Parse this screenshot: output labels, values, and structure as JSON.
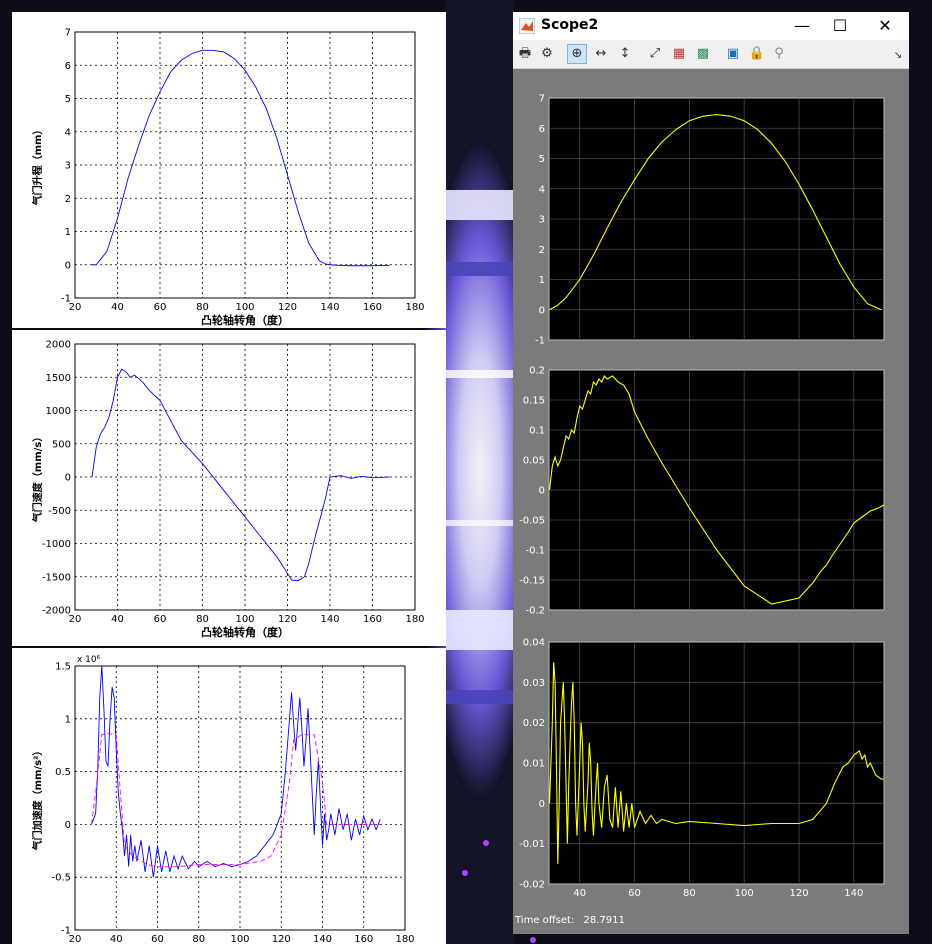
{
  "left_figures": {
    "chart_data": [
      {
        "type": "line",
        "xlabel": "凸轮轴转角（度）",
        "ylabel": "气门升程（mm）",
        "xlim": [
          20,
          180
        ],
        "ylim": [
          -1,
          7
        ],
        "x_ticks": [
          20,
          40,
          60,
          80,
          100,
          120,
          140,
          160,
          180
        ],
        "y_ticks": [
          -1,
          0,
          1,
          2,
          3,
          4,
          5,
          6,
          7
        ],
        "grid": true,
        "series": [
          {
            "color": "#0000ff",
            "x": [
              28,
              30,
              35,
              40,
              45,
              50,
              55,
              60,
              65,
              70,
              75,
              80,
              85,
              90,
              95,
              100,
              105,
              110,
              115,
              120,
              125,
              130,
              135,
              138,
              140,
              145,
              150,
              160,
              168
            ],
            "y": [
              0,
              0,
              0.4,
              1.4,
              2.6,
              3.6,
              4.5,
              5.2,
              5.8,
              6.15,
              6.35,
              6.45,
              6.45,
              6.4,
              6.2,
              5.85,
              5.35,
              4.7,
              3.8,
              2.7,
              1.6,
              0.65,
              0.12,
              0.02,
              0,
              -0.02,
              -0.03,
              -0.03,
              -0.02
            ]
          }
        ]
      },
      {
        "type": "line",
        "xlabel": "凸轮轴转角（度）",
        "ylabel": "气门速度（mm/s）",
        "xlim": [
          20,
          180
        ],
        "ylim": [
          -2000,
          2000
        ],
        "x_ticks": [
          20,
          40,
          60,
          80,
          100,
          120,
          140,
          160,
          180
        ],
        "y_ticks": [
          -2000,
          -1500,
          -1000,
          -500,
          0,
          500,
          1000,
          1500,
          2000
        ],
        "grid": true,
        "series": [
          {
            "color": "#0000ff",
            "x": [
              28,
              30,
              32,
              34,
              36,
              38,
              40,
              42,
              44,
              46,
              48,
              50,
              52,
              55,
              60,
              65,
              70,
              80,
              90,
              100,
              110,
              115,
              120,
              122,
              125,
              128,
              130,
              133,
              136,
              138,
              140,
              145,
              150,
              155,
              160,
              168
            ],
            "y": [
              0,
              450,
              650,
              750,
              900,
              1150,
              1500,
              1620,
              1580,
              1500,
              1530,
              1480,
              1420,
              1300,
              1150,
              850,
              550,
              200,
              -200,
              -600,
              -1000,
              -1200,
              -1450,
              -1550,
              -1560,
              -1500,
              -1300,
              -900,
              -550,
              -300,
              0,
              20,
              -20,
              10,
              -10,
              0
            ]
          }
        ]
      },
      {
        "type": "line",
        "ylabel": "气门加速度（mm/s²）",
        "y_scale_label": "x 10⁶",
        "xlim": [
          20,
          180
        ],
        "ylim": [
          -1,
          1.5
        ],
        "x_ticks": [
          20,
          40,
          60,
          80,
          100,
          120,
          140,
          160,
          180
        ],
        "y_ticks": [
          -1,
          -0.5,
          0,
          0.5,
          1,
          1.5
        ],
        "grid": true,
        "series": [
          {
            "color": "#0000ff",
            "x": [
              28,
              30,
              31,
              32,
              33,
              34,
              35,
              36,
              37,
              38,
              39,
              40,
              41,
              42,
              43,
              44,
              45,
              46,
              47,
              48,
              49,
              50,
              52,
              54,
              56,
              58,
              60,
              62,
              64,
              66,
              68,
              70,
              72,
              75,
              78,
              80,
              84,
              88,
              92,
              96,
              100,
              104,
              108,
              112,
              116,
              120,
              122,
              124,
              125,
              126,
              127,
              128,
              129,
              130,
              131,
              132,
              133,
              134,
              135,
              136,
              137,
              138,
              139,
              140,
              141,
              142,
              143,
              144,
              146,
              148,
              150,
              152,
              154,
              156,
              158,
              160,
              162,
              164,
              166,
              168
            ],
            "y": [
              0,
              0.1,
              0.5,
              1.2,
              1.5,
              1.1,
              0.6,
              0.55,
              1.0,
              1.3,
              1.2,
              0.7,
              0.3,
              0.1,
              -0.05,
              -0.3,
              -0.1,
              -0.4,
              -0.1,
              -0.35,
              -0.2,
              -0.35,
              -0.15,
              -0.45,
              -0.2,
              -0.5,
              -0.2,
              -0.45,
              -0.25,
              -0.45,
              -0.3,
              -0.42,
              -0.3,
              -0.42,
              -0.35,
              -0.4,
              -0.35,
              -0.4,
              -0.37,
              -0.4,
              -0.38,
              -0.35,
              -0.3,
              -0.2,
              -0.1,
              0.1,
              0.5,
              1.0,
              1.25,
              0.95,
              0.7,
              0.95,
              1.2,
              0.9,
              0.55,
              0.8,
              1.1,
              0.7,
              0.3,
              -0.1,
              0.3,
              0.6,
              0.2,
              -0.2,
              0.1,
              -0.15,
              -0.05,
              0.1,
              -0.1,
              0.15,
              -0.05,
              0.1,
              -0.15,
              0.05,
              -0.1,
              0.08,
              -0.05,
              0.05,
              -0.05,
              0.05
            ]
          },
          {
            "color": "#ff00ff",
            "dashed": true,
            "x": [
              28,
              30,
              33,
              36,
              40,
              42,
              44,
              48,
              55,
              60,
              70,
              80,
              90,
              100,
              110,
              115,
              120,
              124,
              126,
              130,
              136,
              140,
              142,
              146,
              150,
              160,
              168
            ],
            "y": [
              0,
              0.3,
              0.85,
              0.86,
              0.85,
              0.3,
              -0.2,
              -0.3,
              -0.38,
              -0.4,
              -0.4,
              -0.38,
              -0.38,
              -0.38,
              -0.35,
              -0.3,
              -0.1,
              0.4,
              0.8,
              0.85,
              0.85,
              0.4,
              0.0,
              0,
              0,
              0,
              0
            ]
          }
        ]
      }
    ]
  },
  "scope_window": {
    "title": "Scope2",
    "minimize_glyph": "—",
    "maximize_glyph": "☐",
    "close_glyph": "✕",
    "toolbar": {
      "icons": [
        "printer-icon",
        "settings-gear-icon",
        "zoom-in-icon",
        "zoom-x-icon",
        "zoom-y-icon",
        "autoscale-icon",
        "save-axes-icon",
        "restore-axes-icon",
        "floating-scope-icon",
        "lock-icon",
        "signal-selection-icon"
      ],
      "glyphs": [
        "🖶",
        "⚙",
        "⊕",
        "↔",
        "↕",
        "⤢",
        "▦",
        "▩",
        "▣",
        "🔒",
        "⚲"
      ],
      "overflow_glyph": "↘"
    },
    "time_offset_label": "Time offset:",
    "time_offset_value": "28.7911",
    "chart_data": [
      {
        "type": "line",
        "xlim": [
          28.7911,
          151
        ],
        "ylim": [
          -1,
          7
        ],
        "y_ticks": [
          -1,
          0,
          1,
          2,
          3,
          4,
          5,
          6,
          7
        ],
        "x_ticks": [
          40,
          60,
          80,
          100,
          120,
          140
        ],
        "show_x_tick_labels": false,
        "grid": true,
        "series": [
          {
            "color": "#ffff00",
            "x": [
              29,
              32,
              35,
              40,
              45,
              50,
              55,
              60,
              65,
              70,
              75,
              80,
              85,
              90,
              95,
              100,
              105,
              110,
              115,
              120,
              125,
              130,
              135,
              140,
              145,
              150
            ],
            "y": [
              0,
              0.15,
              0.4,
              1.0,
              1.8,
              2.7,
              3.55,
              4.3,
              5.0,
              5.55,
              5.95,
              6.25,
              6.4,
              6.45,
              6.4,
              6.25,
              5.95,
              5.5,
              4.9,
              4.15,
              3.3,
              2.4,
              1.5,
              0.75,
              0.2,
              0
            ]
          }
        ]
      },
      {
        "type": "line",
        "xlim": [
          28.7911,
          151
        ],
        "ylim": [
          -0.2,
          0.2
        ],
        "y_ticks": [
          -0.2,
          -0.15,
          -0.1,
          -0.05,
          0,
          0.05,
          0.1,
          0.15,
          0.2
        ],
        "x_ticks": [
          40,
          60,
          80,
          100,
          120,
          140
        ],
        "show_x_tick_labels": false,
        "grid": true,
        "series": [
          {
            "color": "#ffff00",
            "x": [
              29,
              30,
              31,
              32,
              33,
              34,
              35,
              36,
              37,
              38,
              39,
              40,
              41,
              42,
              43,
              44,
              45,
              46,
              47,
              48,
              49,
              50,
              52,
              54,
              56,
              58,
              60,
              65,
              70,
              80,
              90,
              100,
              110,
              120,
              125,
              128,
              130,
              132,
              135,
              138,
              140,
              143,
              146,
              149,
              151
            ],
            "y": [
              0,
              0.04,
              0.055,
              0.04,
              0.05,
              0.07,
              0.09,
              0.085,
              0.1,
              0.095,
              0.12,
              0.14,
              0.135,
              0.15,
              0.165,
              0.16,
              0.18,
              0.175,
              0.185,
              0.18,
              0.19,
              0.185,
              0.19,
              0.18,
              0.175,
              0.16,
              0.13,
              0.085,
              0.045,
              -0.03,
              -0.1,
              -0.16,
              -0.19,
              -0.18,
              -0.155,
              -0.135,
              -0.125,
              -0.11,
              -0.09,
              -0.07,
              -0.055,
              -0.045,
              -0.035,
              -0.03,
              -0.025
            ]
          }
        ]
      },
      {
        "type": "line",
        "xlim": [
          28.7911,
          151
        ],
        "ylim": [
          -0.02,
          0.04
        ],
        "y_ticks": [
          -0.02,
          -0.01,
          0,
          0.01,
          0.02,
          0.03,
          0.04
        ],
        "x_ticks": [
          40,
          60,
          80,
          100,
          120,
          140
        ],
        "show_x_tick_labels": true,
        "grid": true,
        "series": [
          {
            "color": "#ffff00",
            "x": [
              29,
              30,
              30.5,
              31,
              31.5,
              32,
              32.5,
              33,
              34,
              34.5,
              35,
              35.5,
              36,
              37,
              37.5,
              38,
              38.5,
              39,
              40,
              40.5,
              41,
              41.5,
              42,
              43,
              43.5,
              44,
              44.5,
              45,
              46,
              46.5,
              47,
              48,
              49,
              50,
              51,
              52,
              53,
              54,
              55,
              56,
              57,
              58,
              59,
              60,
              62,
              64,
              66,
              68,
              70,
              75,
              80,
              90,
              100,
              110,
              120,
              125,
              130,
              133,
              136,
              138,
              140,
              142,
              143,
              144,
              145,
              146,
              148,
              150,
              151
            ],
            "y": [
              0,
              0.02,
              0.035,
              0.03,
              0.01,
              -0.015,
              0.0,
              0.02,
              0.03,
              0.02,
              0.005,
              -0.01,
              0.005,
              0.025,
              0.03,
              0.02,
              0.0,
              -0.008,
              0.01,
              0.02,
              0.015,
              0.0,
              -0.007,
              0.005,
              0.015,
              0.01,
              -0.002,
              -0.008,
              0.005,
              0.01,
              0.0,
              -0.006,
              0.004,
              0.007,
              -0.004,
              -0.006,
              0.004,
              -0.006,
              0.003,
              -0.007,
              0.0,
              -0.006,
              0.0,
              -0.006,
              -0.002,
              -0.005,
              -0.003,
              -0.005,
              -0.004,
              -0.005,
              -0.0045,
              -0.005,
              -0.0055,
              -0.005,
              -0.005,
              -0.004,
              0.0,
              0.005,
              0.009,
              0.01,
              0.012,
              0.013,
              0.011,
              0.012,
              0.009,
              0.01,
              0.007,
              0.006,
              0.006
            ]
          }
        ]
      }
    ]
  }
}
